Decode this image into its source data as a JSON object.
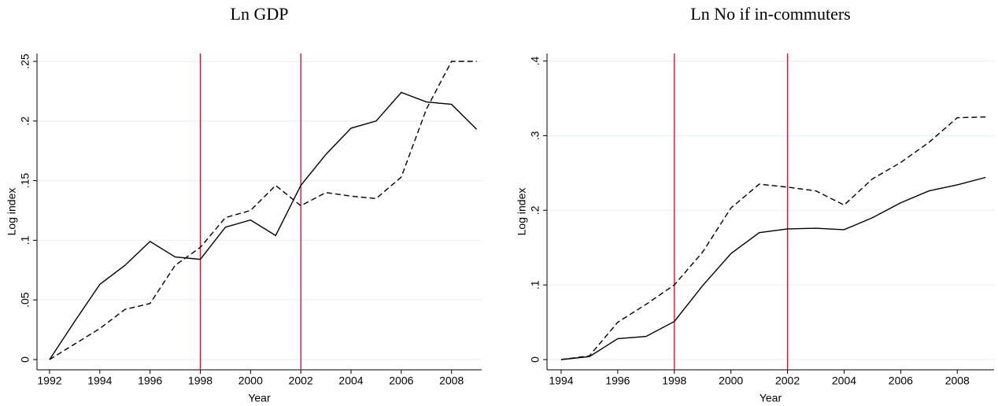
{
  "chart_data": [
    {
      "type": "line",
      "title": "Ln GDP",
      "xlabel": "Year",
      "ylabel": "Log index",
      "x": [
        1992,
        1993,
        1994,
        1995,
        1996,
        1997,
        1998,
        1999,
        2000,
        2001,
        2002,
        2003,
        2004,
        2005,
        2006,
        2007,
        2008,
        2009
      ],
      "series": [
        {
          "color": "#000000",
          "style": "solid",
          "values": [
            0,
            0.032,
            0.063,
            0.079,
            0.099,
            0.086,
            0.084,
            0.111,
            0.117,
            0.104,
            0.146,
            0.172,
            0.194,
            0.2,
            0.224,
            0.216,
            0.214,
            0.193
          ]
        },
        {
          "color": "#000000",
          "style": "dashed",
          "values": [
            0,
            0.013,
            0.026,
            0.042,
            0.047,
            0.079,
            0.094,
            0.119,
            0.125,
            0.146,
            0.129,
            0.14,
            0.137,
            0.135,
            0.153,
            0.21,
            0.25,
            0.25
          ]
        }
      ],
      "vlines": [
        1998,
        2002
      ],
      "vline_color": "#c8102e",
      "xlim": [
        1991.5,
        2009.2
      ],
      "xticks": [
        1992,
        1994,
        1996,
        1998,
        2000,
        2002,
        2004,
        2006,
        2008
      ],
      "ylim": [
        -0.0086,
        0.2566
      ],
      "yticks": [
        0,
        {
          "value": 0.05,
          "label": ".05"
        },
        {
          "value": 0.1,
          "label": ".1"
        },
        {
          "value": 0.15,
          "label": ".15"
        },
        {
          "value": 0.2,
          "label": ".2"
        },
        {
          "value": 0.25,
          "label": ".25"
        }
      ],
      "grid": true
    },
    {
      "type": "line",
      "title": "Ln No if in-commuters",
      "xlabel": "Year",
      "ylabel": "Log index",
      "x": [
        1994,
        1995,
        1996,
        1997,
        1998,
        1999,
        2000,
        2001,
        2002,
        2003,
        2004,
        2005,
        2006,
        2007,
        2008,
        2009
      ],
      "series": [
        {
          "color": "#000000",
          "style": "solid",
          "values": [
            0,
            0.004,
            0.028,
            0.031,
            0.051,
            0.099,
            0.142,
            0.17,
            0.175,
            0.176,
            0.174,
            0.19,
            0.21,
            0.226,
            0.234,
            0.244
          ]
        },
        {
          "color": "#000000",
          "style": "dashed",
          "values": [
            0,
            0.005,
            0.05,
            0.074,
            0.1,
            0.144,
            0.203,
            0.235,
            0.231,
            0.226,
            0.207,
            0.242,
            0.264,
            0.291,
            0.324,
            0.325
          ]
        }
      ],
      "vlines": [
        1998,
        2002
      ],
      "vline_color": "#c8102e",
      "xlim": [
        1993.5,
        2009.3
      ],
      "xticks": [
        1994,
        1996,
        1998,
        2000,
        2002,
        2004,
        2006,
        2008
      ],
      "ylim": [
        -0.0137,
        0.41
      ],
      "yticks": [
        0,
        {
          "value": 0.1,
          "label": ".1"
        },
        {
          "value": 0.2,
          "label": ".2"
        },
        {
          "value": 0.3,
          "label": ".3"
        },
        {
          "value": 0.4,
          "label": ".4"
        }
      ],
      "grid": true
    }
  ]
}
